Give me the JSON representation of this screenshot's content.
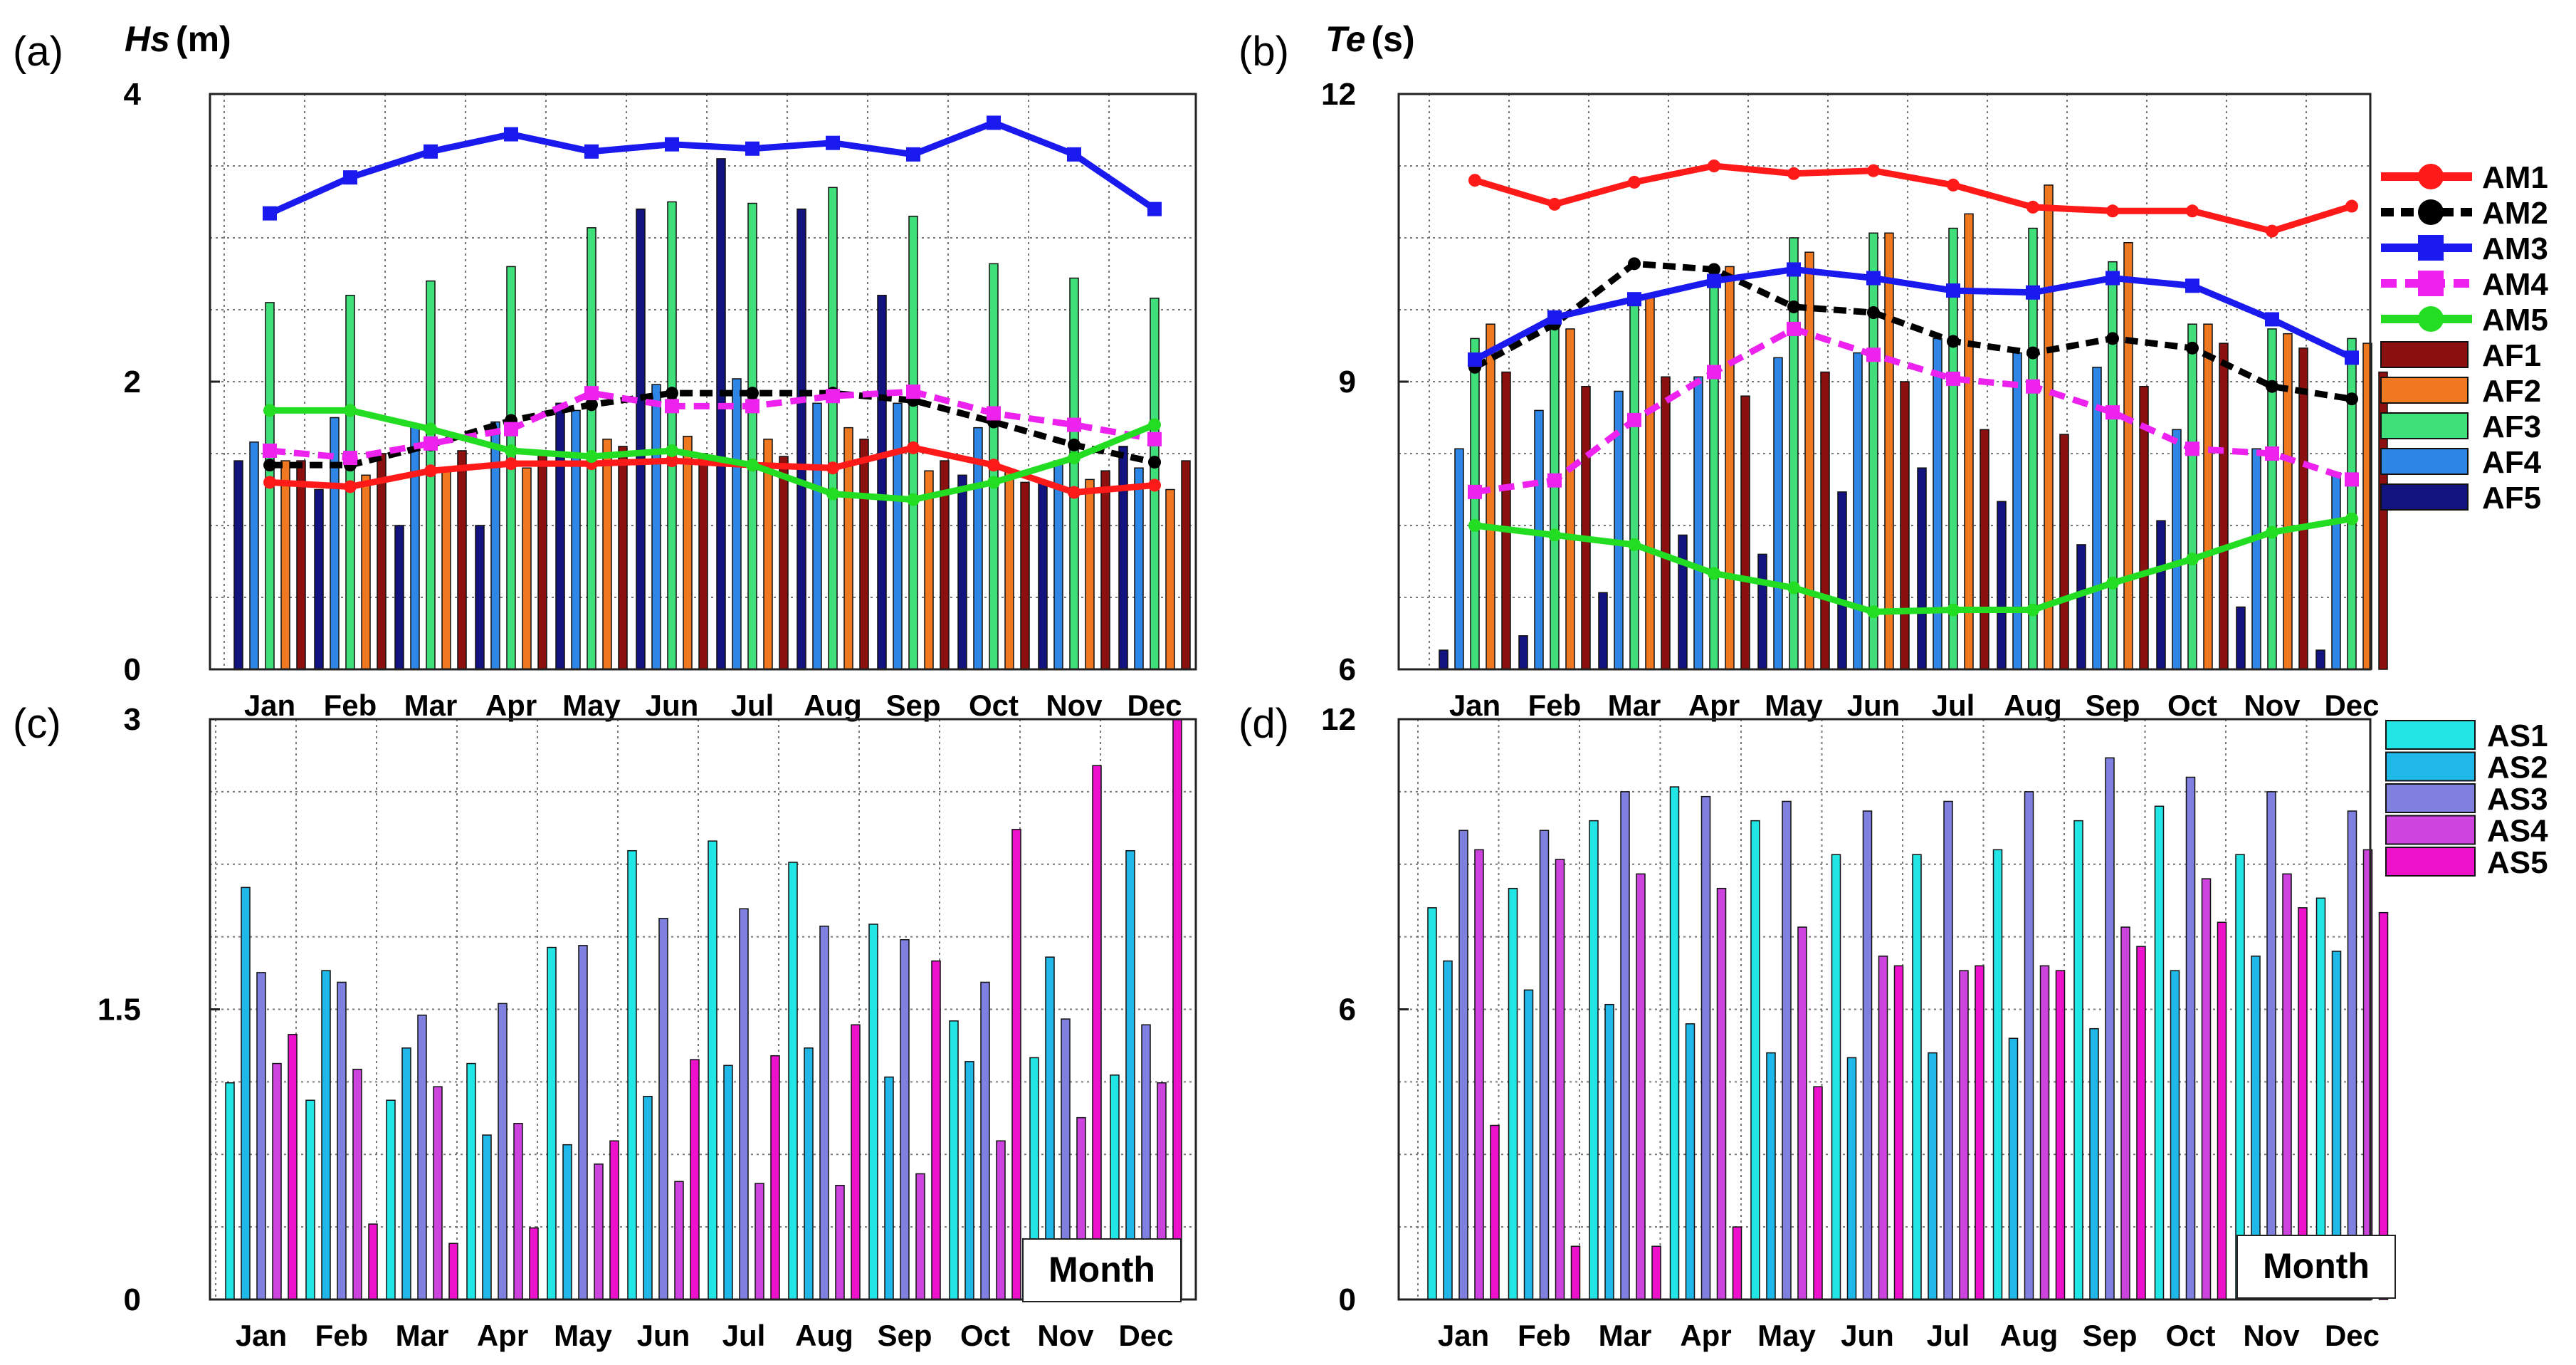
{
  "figure": {
    "month_box_label": "Month"
  },
  "chart_data": [
    {
      "panel": "(a)",
      "type": "bar+line",
      "ylabel_var": "Hs",
      "ylabel_unit": "(m)",
      "ylim": [
        0,
        4
      ],
      "yticks": [
        0,
        2,
        4
      ],
      "grid": true,
      "categories": [
        "Jan",
        "Feb",
        "Mar",
        "Apr",
        "May",
        "Jun",
        "Jul",
        "Aug",
        "Sep",
        "Oct",
        "Nov",
        "Dec"
      ],
      "bars": [
        {
          "name": "AF5",
          "color": "#131380",
          "values": [
            1.45,
            1.25,
            1.0,
            1.0,
            1.85,
            3.2,
            3.55,
            3.2,
            2.6,
            1.35,
            1.3,
            1.55
          ]
        },
        {
          "name": "AF4",
          "color": "#2e86e6",
          "values": [
            1.58,
            1.75,
            1.7,
            1.72,
            1.8,
            1.98,
            2.02,
            1.85,
            1.85,
            1.68,
            1.45,
            1.4
          ]
        },
        {
          "name": "AF3",
          "color": "#3fe07a",
          "values": [
            2.55,
            2.6,
            2.7,
            2.8,
            3.07,
            3.25,
            3.24,
            3.35,
            3.15,
            2.82,
            2.72,
            2.58
          ]
        },
        {
          "name": "AF2",
          "color": "#f07820",
          "values": [
            1.45,
            1.35,
            1.4,
            1.4,
            1.6,
            1.62,
            1.6,
            1.68,
            1.38,
            1.38,
            1.32,
            1.25
          ]
        },
        {
          "name": "AF1",
          "color": "#8b1010",
          "values": [
            1.45,
            1.5,
            1.52,
            1.5,
            1.55,
            1.5,
            1.48,
            1.6,
            1.45,
            1.3,
            1.38,
            1.45
          ]
        }
      ],
      "series": [
        {
          "name": "AM1",
          "color": "#ff1a1a",
          "dash": "",
          "values": [
            1.3,
            1.27,
            1.38,
            1.43,
            1.43,
            1.45,
            1.42,
            1.4,
            1.54,
            1.42,
            1.23,
            1.28
          ]
        },
        {
          "name": "AM2",
          "color": "#000000",
          "dash": "18,10",
          "values": [
            1.42,
            1.42,
            1.56,
            1.73,
            1.84,
            1.92,
            1.92,
            1.92,
            1.87,
            1.72,
            1.56,
            1.44
          ]
        },
        {
          "name": "AM3",
          "color": "#1a1aee",
          "dash": "",
          "values": [
            3.17,
            3.42,
            3.6,
            3.72,
            3.6,
            3.65,
            3.62,
            3.66,
            3.58,
            3.8,
            3.58,
            3.2
          ]
        },
        {
          "name": "AM4",
          "color": "#ee22ee",
          "dash": "22,12",
          "values": [
            1.52,
            1.47,
            1.57,
            1.67,
            1.92,
            1.83,
            1.83,
            1.9,
            1.93,
            1.78,
            1.7,
            1.6
          ]
        },
        {
          "name": "AM5",
          "color": "#22dd22",
          "dash": "",
          "values": [
            1.8,
            1.8,
            1.67,
            1.52,
            1.48,
            1.52,
            1.42,
            1.22,
            1.18,
            1.3,
            1.47,
            1.7
          ]
        }
      ]
    },
    {
      "panel": "(b)",
      "type": "bar+line",
      "ylabel_var": "Te",
      "ylabel_unit": "(s)",
      "ylim": [
        6,
        12
      ],
      "yticks": [
        6,
        9,
        12
      ],
      "grid": true,
      "categories": [
        "Jan",
        "Feb",
        "Mar",
        "Apr",
        "May",
        "Jun",
        "Jul",
        "Aug",
        "Sep",
        "Oct",
        "Nov",
        "Dec"
      ],
      "bars": [
        {
          "name": "AF5",
          "color": "#131380",
          "values": [
            6.2,
            6.35,
            6.8,
            7.4,
            7.2,
            7.85,
            8.1,
            7.75,
            7.3,
            7.55,
            6.65,
            6.2
          ]
        },
        {
          "name": "AF4",
          "color": "#2e86e6",
          "values": [
            8.3,
            8.7,
            8.9,
            9.05,
            9.25,
            9.3,
            9.45,
            9.3,
            9.15,
            8.5,
            8.3,
            8.05
          ]
        },
        {
          "name": "AF3",
          "color": "#3fe07a",
          "values": [
            9.45,
            9.6,
            9.85,
            10.15,
            10.5,
            10.55,
            10.6,
            10.6,
            10.25,
            9.6,
            9.55,
            9.45
          ]
        },
        {
          "name": "AF2",
          "color": "#f07820",
          "values": [
            9.6,
            9.55,
            9.9,
            10.2,
            10.35,
            10.55,
            10.75,
            11.05,
            10.45,
            9.6,
            9.5,
            9.4
          ]
        },
        {
          "name": "AF1",
          "color": "#8b1010",
          "values": [
            9.1,
            8.95,
            9.05,
            8.85,
            9.1,
            9.0,
            8.5,
            8.45,
            8.95,
            9.4,
            9.35,
            9.1
          ]
        }
      ],
      "series": [
        {
          "name": "AM1",
          "color": "#ff1a1a",
          "dash": "",
          "values": [
            11.1,
            10.85,
            11.08,
            11.25,
            11.17,
            11.2,
            11.05,
            10.82,
            10.78,
            10.78,
            10.57,
            10.83
          ]
        },
        {
          "name": "AM2",
          "color": "#000000",
          "dash": "18,10",
          "values": [
            9.15,
            9.6,
            10.23,
            10.17,
            9.78,
            9.72,
            9.42,
            9.3,
            9.45,
            9.35,
            8.95,
            8.82
          ]
        },
        {
          "name": "AM3",
          "color": "#1a1aee",
          "dash": "",
          "values": [
            9.23,
            9.67,
            9.86,
            10.05,
            10.17,
            10.08,
            9.95,
            9.93,
            10.08,
            10.0,
            9.65,
            9.25
          ]
        },
        {
          "name": "AM4",
          "color": "#ee22ee",
          "dash": "22,12",
          "values": [
            7.85,
            7.97,
            8.6,
            9.1,
            9.55,
            9.28,
            9.03,
            8.95,
            8.68,
            8.3,
            8.25,
            7.98
          ]
        },
        {
          "name": "AM5",
          "color": "#22dd22",
          "dash": "",
          "values": [
            7.5,
            7.4,
            7.3,
            7.0,
            6.85,
            6.6,
            6.62,
            6.62,
            6.9,
            7.15,
            7.43,
            7.57
          ]
        }
      ],
      "legend": [
        "AM1",
        "AM2",
        "AM3",
        "AM4",
        "AM5",
        "AF1",
        "AF2",
        "AF3",
        "AF4",
        "AF5"
      ]
    },
    {
      "panel": "(c)",
      "type": "bar",
      "ylim": [
        0,
        3
      ],
      "yticks": [
        0,
        1.5,
        3
      ],
      "ytick_labels": [
        "0",
        "1.5",
        "3"
      ],
      "grid": true,
      "categories": [
        "Jan",
        "Feb",
        "Mar",
        "Apr",
        "May",
        "Jun",
        "Jul",
        "Aug",
        "Sep",
        "Oct",
        "Nov",
        "Dec"
      ],
      "bars": [
        {
          "name": "AS1",
          "color": "#22e6e6",
          "values": [
            1.12,
            1.03,
            1.03,
            1.22,
            1.82,
            2.32,
            2.37,
            2.26,
            1.94,
            1.44,
            1.25,
            1.16
          ]
        },
        {
          "name": "AS2",
          "color": "#1fb8e8",
          "values": [
            2.13,
            1.7,
            1.3,
            0.85,
            0.8,
            1.05,
            1.21,
            1.3,
            1.15,
            1.23,
            1.77,
            2.32
          ]
        },
        {
          "name": "AS3",
          "color": "#8080e0",
          "values": [
            1.69,
            1.64,
            1.47,
            1.53,
            1.83,
            1.97,
            2.02,
            1.93,
            1.86,
            1.64,
            1.45,
            1.42
          ]
        },
        {
          "name": "AS4",
          "color": "#cc44dd",
          "values": [
            1.22,
            1.19,
            1.1,
            0.91,
            0.7,
            0.61,
            0.6,
            0.59,
            0.65,
            0.82,
            0.94,
            1.12
          ]
        },
        {
          "name": "AS5",
          "color": "#ee11cc",
          "values": [
            1.37,
            0.39,
            0.29,
            0.37,
            0.82,
            1.24,
            1.26,
            1.42,
            1.75,
            2.43,
            2.76,
            3.0
          ]
        }
      ]
    },
    {
      "panel": "(d)",
      "type": "bar",
      "ylim": [
        0,
        12
      ],
      "yticks": [
        0,
        6,
        12
      ],
      "grid": true,
      "categories": [
        "Jan",
        "Feb",
        "Mar",
        "Apr",
        "May",
        "Jun",
        "Jul",
        "Aug",
        "Sep",
        "Oct",
        "Nov",
        "Dec"
      ],
      "bars": [
        {
          "name": "AS1",
          "color": "#22e6e6",
          "values": [
            8.1,
            8.5,
            9.9,
            10.6,
            9.9,
            9.2,
            9.2,
            9.3,
            9.9,
            10.2,
            9.2,
            8.3
          ]
        },
        {
          "name": "AS2",
          "color": "#1fb8e8",
          "values": [
            7.0,
            6.4,
            6.1,
            5.7,
            5.1,
            5.0,
            5.1,
            5.4,
            5.6,
            6.8,
            7.1,
            7.2
          ]
        },
        {
          "name": "AS3",
          "color": "#8080e0",
          "values": [
            9.7,
            9.7,
            10.5,
            10.4,
            10.3,
            10.1,
            10.3,
            10.5,
            11.2,
            10.8,
            10.5,
            10.1
          ]
        },
        {
          "name": "AS4",
          "color": "#cc44dd",
          "values": [
            9.3,
            9.1,
            8.8,
            8.5,
            7.7,
            7.1,
            6.8,
            6.9,
            7.7,
            8.7,
            8.8,
            9.3
          ]
        },
        {
          "name": "AS5",
          "color": "#ee11cc",
          "values": [
            3.6,
            1.1,
            1.1,
            1.5,
            4.4,
            6.9,
            6.9,
            6.8,
            7.3,
            7.8,
            8.1,
            8.0
          ]
        }
      ],
      "legend": [
        "AS1",
        "AS2",
        "AS3",
        "AS4",
        "AS5"
      ]
    }
  ]
}
